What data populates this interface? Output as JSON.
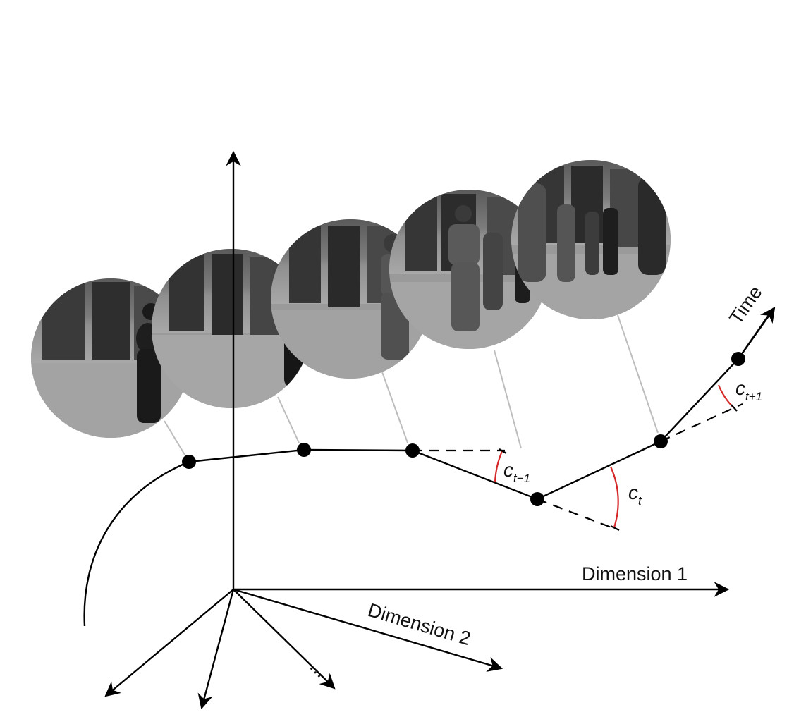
{
  "axes": {
    "dimension1_label": "Dimension 1",
    "dimension2_label": "Dimension 2",
    "time_label": "Time",
    "more_dimensions": "..."
  },
  "angles": [
    {
      "symbol": "c",
      "subscript": "t−1"
    },
    {
      "symbol": "c",
      "subscript": "t"
    },
    {
      "symbol": "c",
      "subscript": "t+1"
    }
  ],
  "colors": {
    "angle_arc": "#d62728",
    "connector": "#bdbdbd",
    "trajectory": "#000000"
  },
  "frames": [
    {
      "subject": "pedestrian-walking"
    },
    {
      "subject": "pedestrian-walking-partial"
    },
    {
      "subject": "pedestrian-striding"
    },
    {
      "subject": "group-of-pedestrians"
    },
    {
      "subject": "crowd-walking-away"
    }
  ]
}
